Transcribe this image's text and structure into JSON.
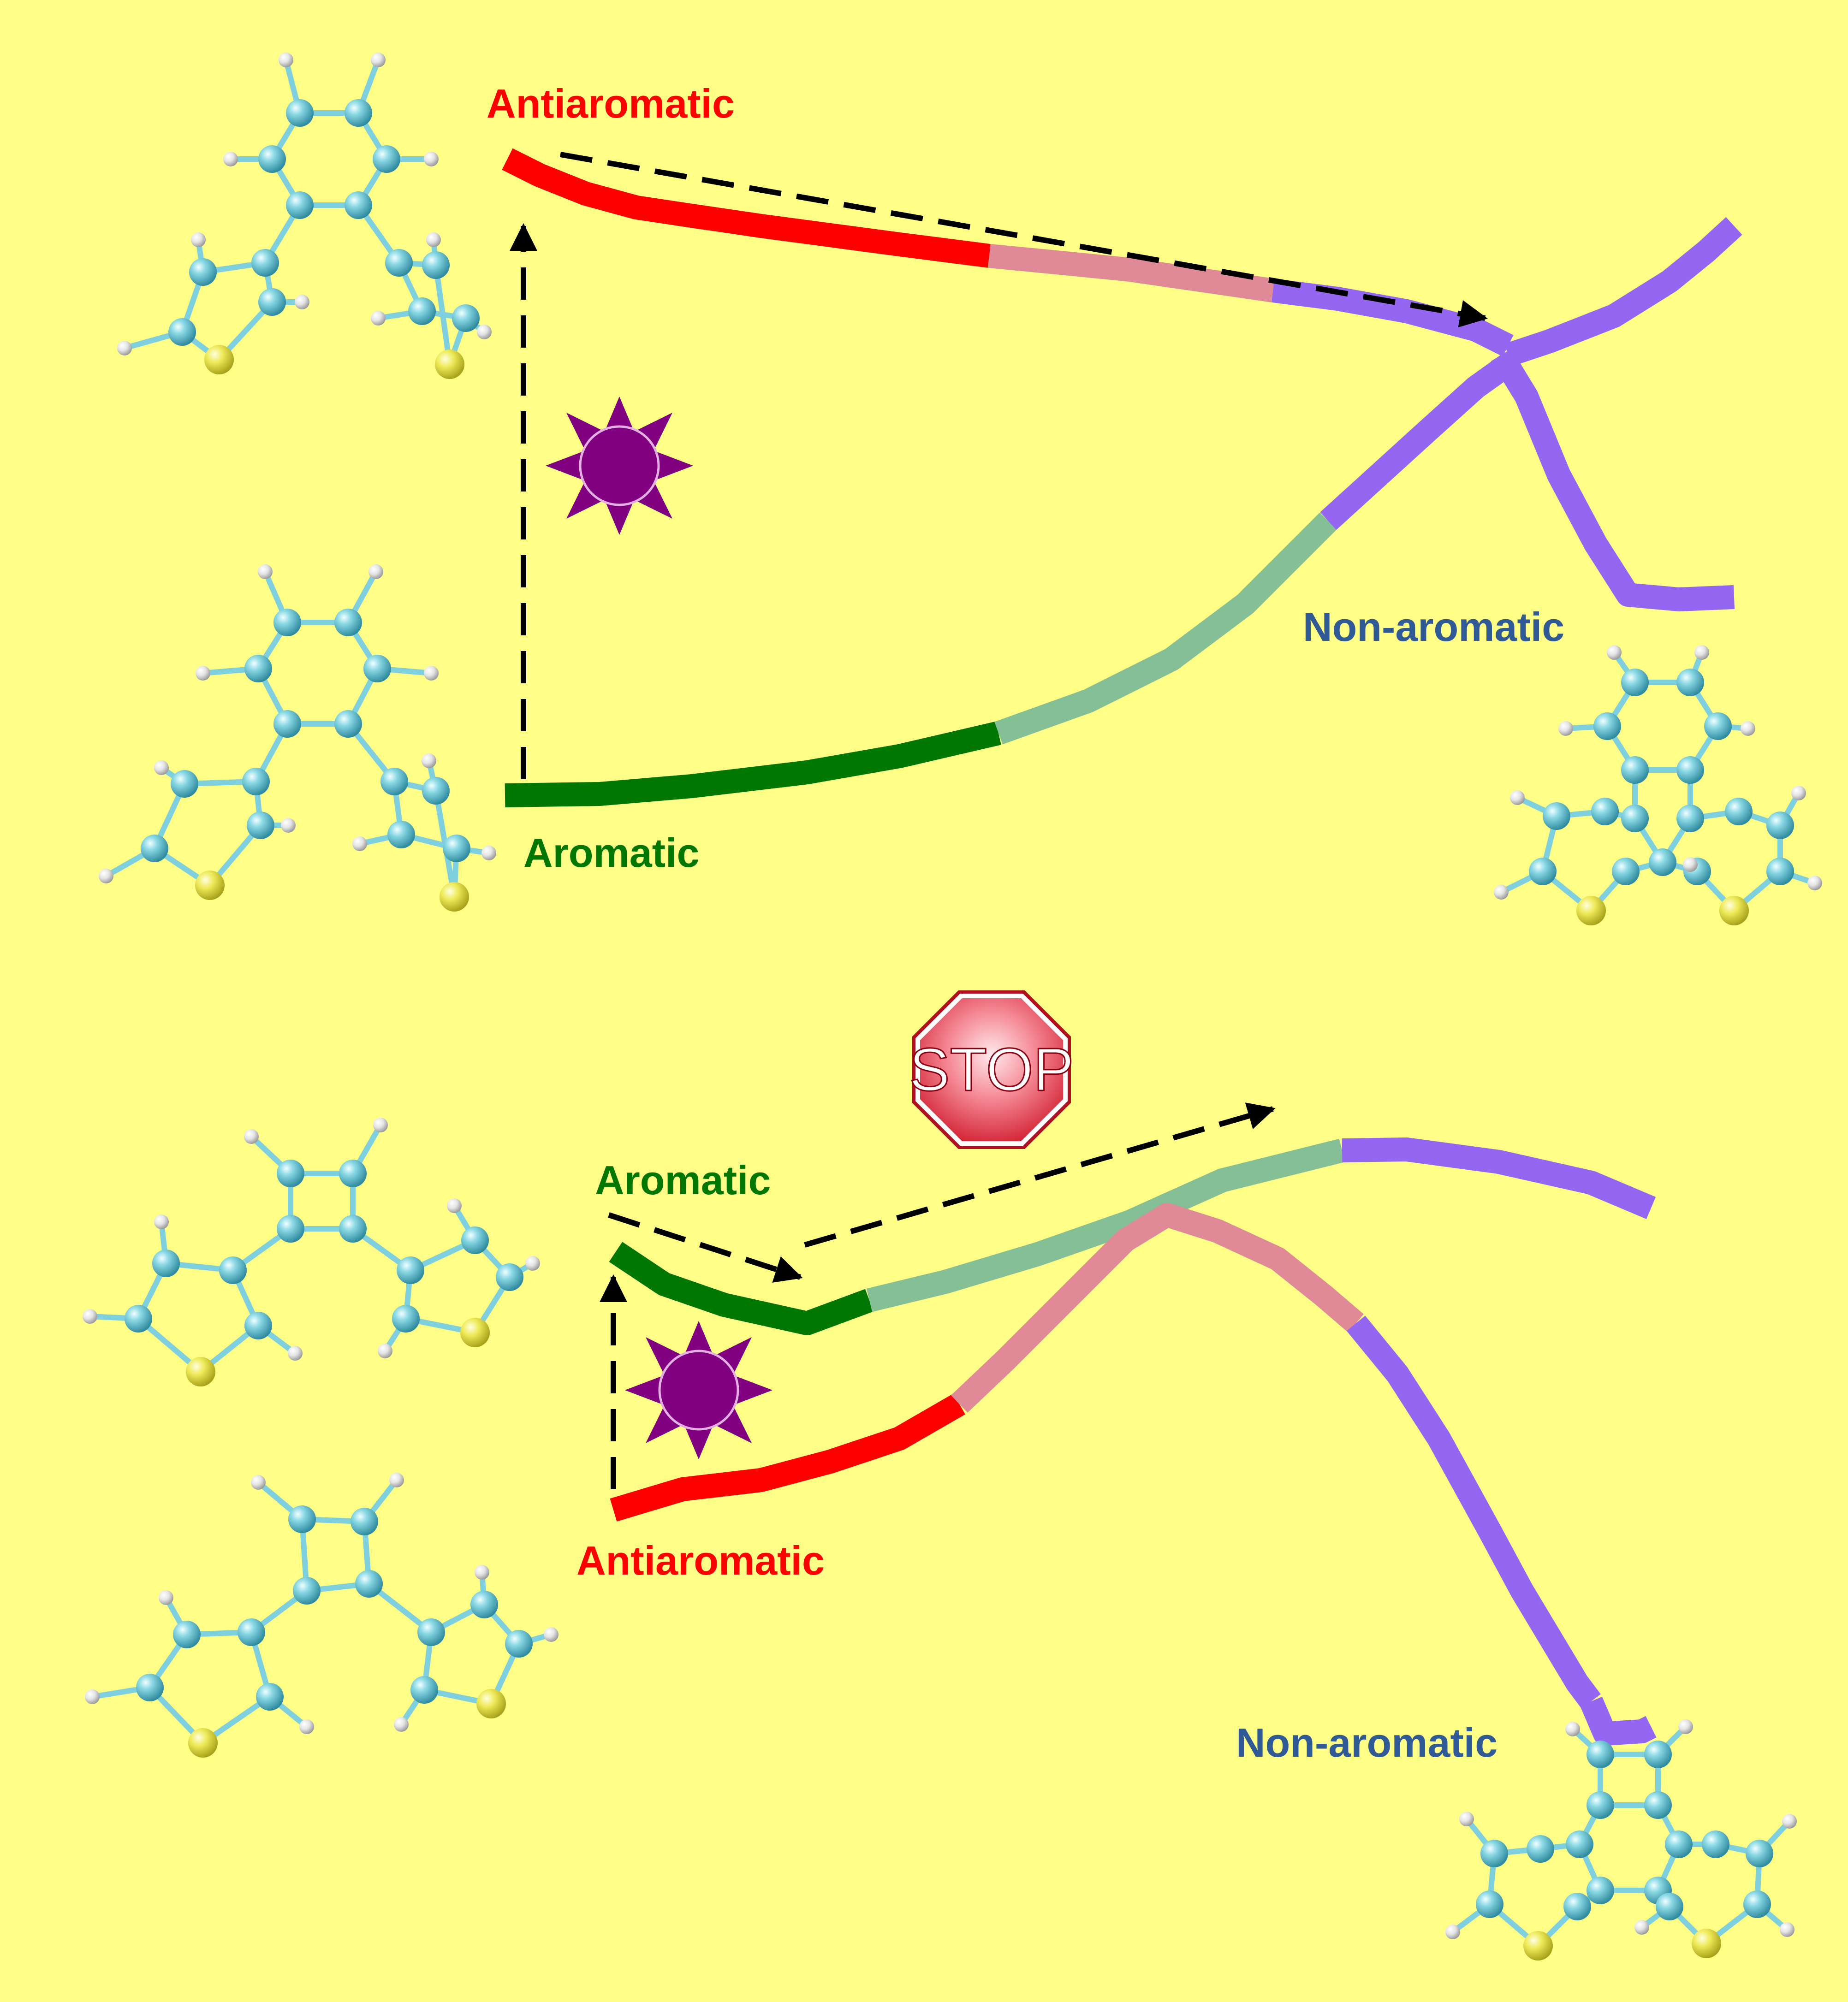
{
  "colors": {
    "background": "#FFFF88",
    "antiaromatic": "#FF0000",
    "antiaromatic_faded": "#E08A98",
    "aromatic": "#007700",
    "aromatic_faded": "#85BF95",
    "non_aromatic": "#9566F2",
    "non_aromatic_text": "#2F5A96",
    "sun": "#800080",
    "carbon": "#5EC2D2",
    "hydrogen": "#EDEDED",
    "sulfur": "#E7E240",
    "stop_sign": "#E8293A"
  },
  "icons": {
    "light": "sun-icon",
    "blocked": "stop-sign-icon"
  },
  "panels": [
    {
      "id": "six-membered",
      "label_antiaromatic": "Antiaromatic",
      "label_aromatic": "Aromatic",
      "label_non_aromatic": "Non-aromatic",
      "ring_size": 6
    },
    {
      "id": "four-membered",
      "label_aromatic": "Aromatic",
      "label_antiaromatic": "Antiaromatic",
      "label_non_aromatic": "Non-aromatic",
      "stop_sign_text": "STOP",
      "ring_size": 4
    }
  ]
}
